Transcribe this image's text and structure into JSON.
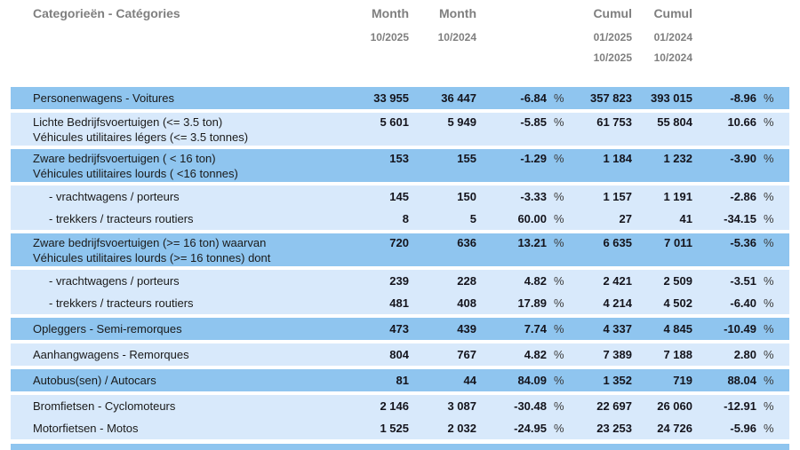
{
  "header": {
    "category_label": "Categorieën - Catégories",
    "month_current": {
      "title": "Month",
      "period": "10/2025"
    },
    "month_previous": {
      "title": "Month",
      "period": "10/2024"
    },
    "cumul_current": {
      "title": "Cumul",
      "period_start": "01/2025",
      "period_end": "10/2025"
    },
    "cumul_previous": {
      "title": "Cumul",
      "period_start": "01/2024",
      "period_end": "10/2024"
    }
  },
  "percent_symbol": "%",
  "colors": {
    "row_dark": "#8FC5EF",
    "row_light": "#D8E9FB",
    "header_text": "#7F7F7F",
    "label_text": "#1A1A1A",
    "value_text": "#14141C"
  },
  "rows": [
    {
      "label_lines": [
        "Personenwagens - Voitures"
      ],
      "indent": false,
      "shade": "dark",
      "month_current": "33 955",
      "month_previous": "36 447",
      "month_change_pct": "-6.84",
      "cumul_current": "357 823",
      "cumul_previous": "393 015",
      "cumul_change_pct": "-8.96"
    },
    {
      "label_lines": [
        "Lichte Bedrijfsvoertuigen (<= 3.5 ton)",
        "Véhicules utilitaires légers (<= 3.5 tonnes)"
      ],
      "indent": false,
      "shade": "light",
      "month_current": "5 601",
      "month_previous": "5 949",
      "month_change_pct": "-5.85",
      "cumul_current": "61 753",
      "cumul_previous": "55 804",
      "cumul_change_pct": "10.66"
    },
    {
      "label_lines": [
        "Zware bedrijfsvoertuigen ( < 16 ton)",
        "Véhicules utilitaires lourds ( <16 tonnes)"
      ],
      "indent": false,
      "shade": "dark",
      "month_current": "153",
      "month_previous": "155",
      "month_change_pct": "-1.29",
      "cumul_current": "1 184",
      "cumul_previous": "1 232",
      "cumul_change_pct": "-3.90"
    },
    {
      "label_lines": [
        "- vrachtwagens / porteurs"
      ],
      "indent": true,
      "shade": "light",
      "month_current": "145",
      "month_previous": "150",
      "month_change_pct": "-3.33",
      "cumul_current": "1 157",
      "cumul_previous": "1 191",
      "cumul_change_pct": "-2.86"
    },
    {
      "label_lines": [
        "- trekkers / tracteurs routiers"
      ],
      "indent": true,
      "shade": "light",
      "month_current": "8",
      "month_previous": "5",
      "month_change_pct": "60.00",
      "cumul_current": "27",
      "cumul_previous": "41",
      "cumul_change_pct": "-34.15"
    },
    {
      "label_lines": [
        "Zware bedrijfsvoertuigen (>= 16 ton) waarvan",
        "Véhicules utilitaires lourds (>= 16 tonnes) dont"
      ],
      "indent": false,
      "shade": "dark",
      "month_current": "720",
      "month_previous": "636",
      "month_change_pct": "13.21",
      "cumul_current": "6 635",
      "cumul_previous": "7 011",
      "cumul_change_pct": "-5.36"
    },
    {
      "label_lines": [
        "- vrachtwagens / porteurs"
      ],
      "indent": true,
      "shade": "light",
      "month_current": "239",
      "month_previous": "228",
      "month_change_pct": "4.82",
      "cumul_current": "2 421",
      "cumul_previous": "2 509",
      "cumul_change_pct": "-3.51"
    },
    {
      "label_lines": [
        "- trekkers / tracteurs routiers"
      ],
      "indent": true,
      "shade": "light",
      "month_current": "481",
      "month_previous": "408",
      "month_change_pct": "17.89",
      "cumul_current": "4 214",
      "cumul_previous": "4 502",
      "cumul_change_pct": "-6.40"
    },
    {
      "label_lines": [
        "Opleggers - Semi-remorques"
      ],
      "indent": false,
      "shade": "dark",
      "month_current": "473",
      "month_previous": "439",
      "month_change_pct": "7.74",
      "cumul_current": "4 337",
      "cumul_previous": "4 845",
      "cumul_change_pct": "-10.49"
    },
    {
      "label_lines": [
        "Aanhangwagens - Remorques"
      ],
      "indent": false,
      "shade": "light",
      "month_current": "804",
      "month_previous": "767",
      "month_change_pct": "4.82",
      "cumul_current": "7 389",
      "cumul_previous": "7 188",
      "cumul_change_pct": "2.80"
    },
    {
      "label_lines": [
        "Autobus(sen) / Autocars"
      ],
      "indent": false,
      "shade": "dark",
      "month_current": "81",
      "month_previous": "44",
      "month_change_pct": "84.09",
      "cumul_current": "1 352",
      "cumul_previous": "719",
      "cumul_change_pct": "88.04"
    },
    {
      "label_lines": [
        "Bromfietsen - Cyclomoteurs"
      ],
      "indent": false,
      "shade": "light",
      "month_current": "2 146",
      "month_previous": "3 087",
      "month_change_pct": "-30.48",
      "cumul_current": "22 697",
      "cumul_previous": "26 060",
      "cumul_change_pct": "-12.91"
    },
    {
      "label_lines": [
        "Motorfietsen - Motos"
      ],
      "indent": false,
      "shade": "light",
      "month_current": "1 525",
      "month_previous": "2 032",
      "month_change_pct": "-24.95",
      "cumul_current": "23 253",
      "cumul_previous": "24 726",
      "cumul_change_pct": "-5.96"
    }
  ],
  "chart_data": {
    "type": "table",
    "title": "Categorieën - Catégories",
    "columns": [
      "Categorieën - Catégories",
      "Month 10/2025",
      "Month 10/2024",
      "% change month",
      "Cumul 01/2025-10/2025",
      "Cumul 01/2024-10/2024",
      "% change cumul"
    ],
    "rows": [
      [
        "Personenwagens - Voitures",
        33955,
        36447,
        -6.84,
        357823,
        393015,
        -8.96
      ],
      [
        "Lichte Bedrijfsvoertuigen (<= 3.5 ton) / Véhicules utilitaires légers (<= 3.5 tonnes)",
        5601,
        5949,
        -5.85,
        61753,
        55804,
        10.66
      ],
      [
        "Zware bedrijfsvoertuigen ( < 16 ton) / Véhicules utilitaires lourds ( <16 tonnes)",
        153,
        155,
        -1.29,
        1184,
        1232,
        -3.9
      ],
      [
        "- vrachtwagens / porteurs",
        145,
        150,
        -3.33,
        1157,
        1191,
        -2.86
      ],
      [
        "- trekkers / tracteurs routiers",
        8,
        5,
        60.0,
        27,
        41,
        -34.15
      ],
      [
        "Zware bedrijfsvoertuigen (>= 16 ton) waarvan / Véhicules utilitaires lourds (>= 16 tonnes) dont",
        720,
        636,
        13.21,
        6635,
        7011,
        -5.36
      ],
      [
        "- vrachtwagens / porteurs",
        239,
        228,
        4.82,
        2421,
        2509,
        -3.51
      ],
      [
        "- trekkers / tracteurs routiers",
        481,
        408,
        17.89,
        4214,
        4502,
        -6.4
      ],
      [
        "Opleggers - Semi-remorques",
        473,
        439,
        7.74,
        4337,
        4845,
        -10.49
      ],
      [
        "Aanhangwagens - Remorques",
        804,
        767,
        4.82,
        7389,
        7188,
        2.8
      ],
      [
        "Autobus(sen) / Autocars",
        81,
        44,
        84.09,
        1352,
        719,
        88.04
      ],
      [
        "Bromfietsen - Cyclomoteurs",
        2146,
        3087,
        -30.48,
        22697,
        26060,
        -12.91
      ],
      [
        "Motorfietsen - Motos",
        1525,
        2032,
        -24.95,
        23253,
        24726,
        -5.96
      ]
    ]
  }
}
